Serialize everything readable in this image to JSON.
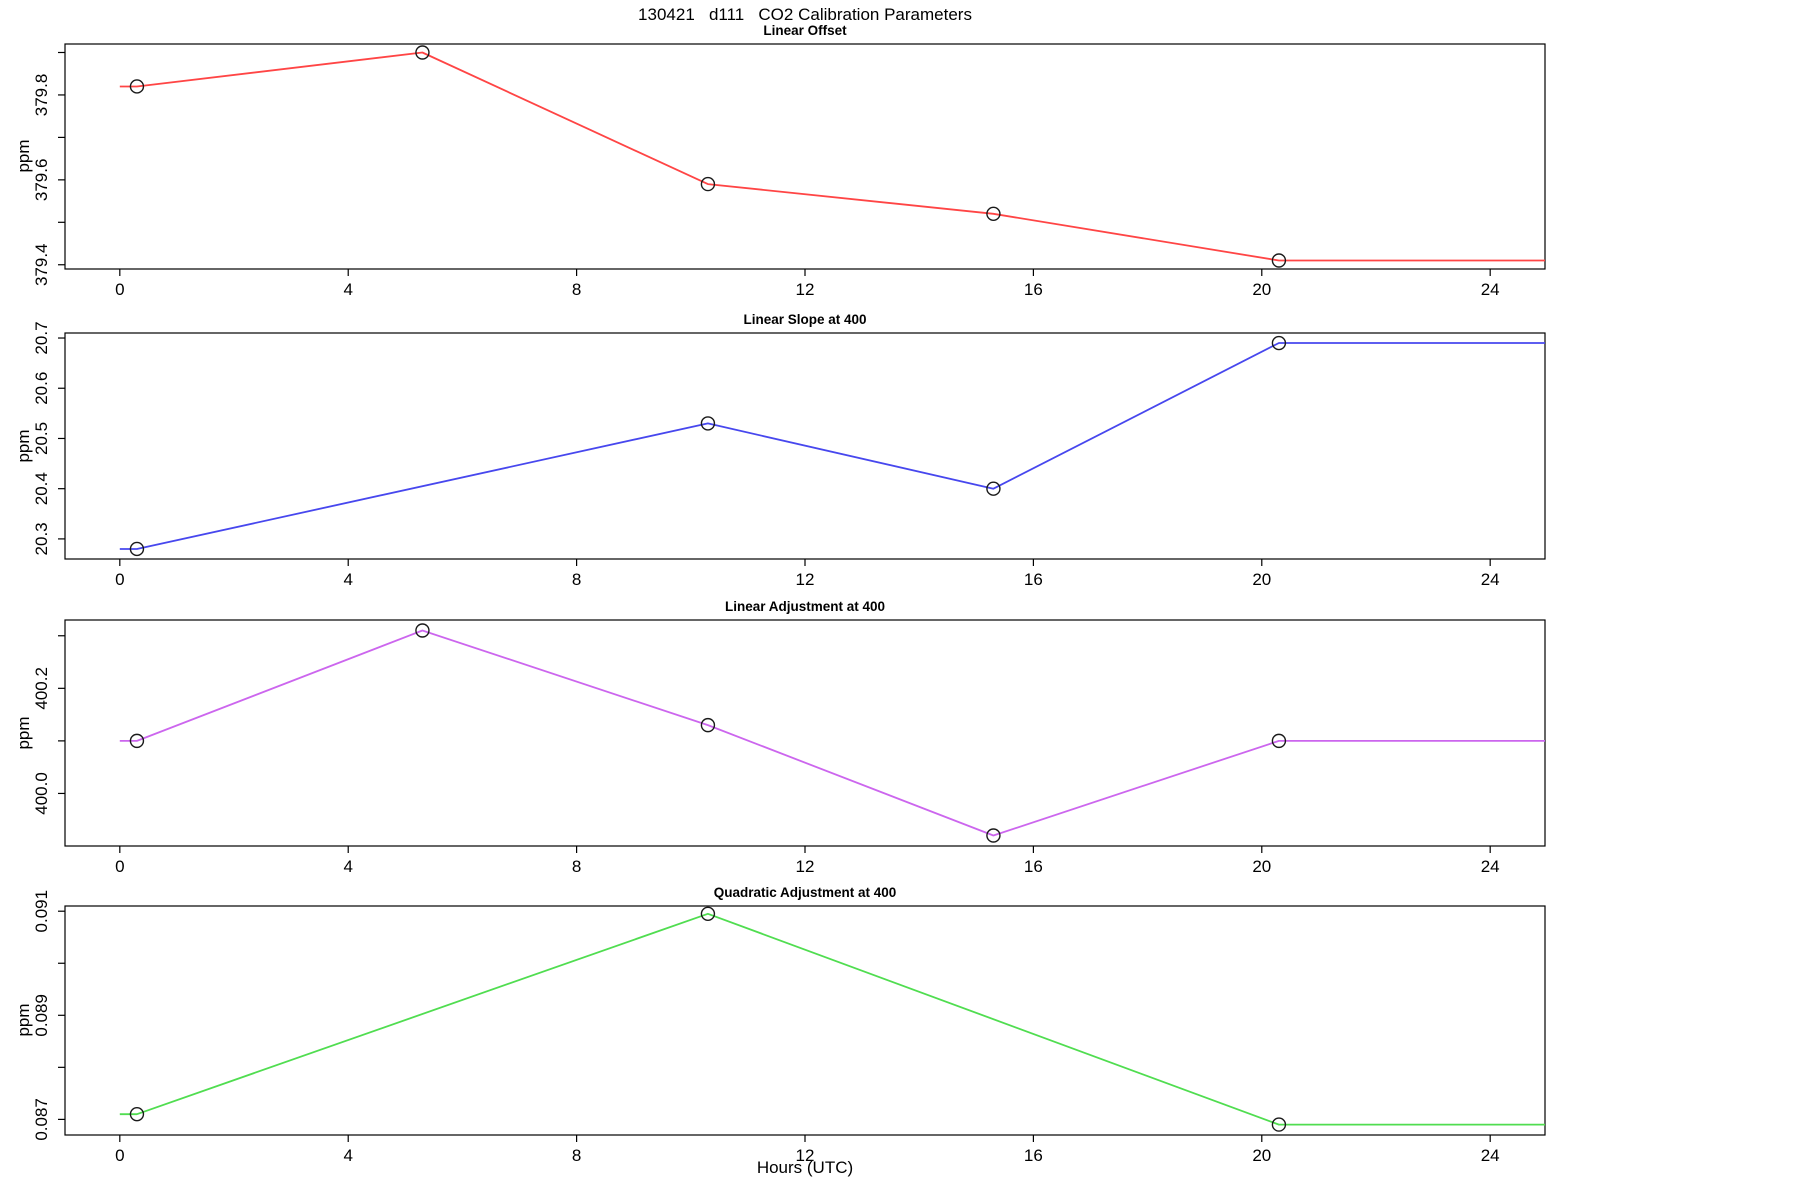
{
  "figure": {
    "title": "130421   d111   CO2 Calibration Parameters",
    "xlabel": "Hours (UTC)",
    "background": "#ffffff",
    "axis_color": "#000000"
  },
  "chart_data": [
    {
      "type": "line",
      "title": "Linear Offset",
      "ylabel": "ppm",
      "color": "#ff4545",
      "marker": "open-circle",
      "x": [
        0.3,
        5.3,
        10.3,
        15.3,
        20.3
      ],
      "y": [
        379.82,
        379.9,
        379.59,
        379.52,
        379.41
      ],
      "xlim": [
        -0.96,
        24.96
      ],
      "ylim": [
        379.39,
        379.92
      ],
      "xticks": [
        0,
        4,
        8,
        12,
        16,
        20,
        24
      ],
      "yticks": [
        379.4,
        379.5,
        379.6,
        379.7,
        379.8,
        379.9
      ],
      "ytick_labels": [
        "379.4",
        "",
        "379.6",
        "",
        "379.8",
        ""
      ],
      "extend_left_to": 0,
      "extend_right_to": 24.96,
      "grid": false,
      "legend": "none"
    },
    {
      "type": "line",
      "title": "Linear Slope at 400",
      "ylabel": "ppm",
      "color": "#4747ee",
      "marker": "open-circle",
      "x": [
        0.3,
        10.3,
        15.3,
        20.3
      ],
      "y": [
        20.28,
        20.53,
        20.4,
        20.69
      ],
      "xlim": [
        -0.96,
        24.96
      ],
      "ylim": [
        20.26,
        20.71
      ],
      "xticks": [
        0,
        4,
        8,
        12,
        16,
        20,
        24
      ],
      "yticks": [
        20.3,
        20.4,
        20.5,
        20.6,
        20.7
      ],
      "ytick_labels": [
        "20.3",
        "20.4",
        "20.5",
        "20.6",
        "20.7"
      ],
      "extend_left_to": 0,
      "extend_right_to": 24.96,
      "grid": false,
      "legend": "none"
    },
    {
      "type": "line",
      "title": "Linear Adjustment at 400",
      "ylabel": "ppm",
      "color": "#cc66ee",
      "marker": "open-circle",
      "x": [
        0.3,
        5.3,
        10.3,
        15.3,
        20.3
      ],
      "y": [
        400.1,
        400.31,
        400.13,
        399.92,
        400.1
      ],
      "xlim": [
        -0.96,
        24.96
      ],
      "ylim": [
        399.9,
        400.33
      ],
      "xticks": [
        0,
        4,
        8,
        12,
        16,
        20,
        24
      ],
      "yticks": [
        400.0,
        400.1,
        400.2,
        400.3
      ],
      "ytick_labels": [
        "400.0",
        "",
        "400.2",
        ""
      ],
      "extend_left_to": 0,
      "extend_right_to": 24.96,
      "grid": false,
      "legend": "none"
    },
    {
      "type": "line",
      "title": "Quadratic Adjustment at 400",
      "ylabel": "ppm",
      "color": "#50dd50",
      "marker": "open-circle",
      "x": [
        0.3,
        10.3,
        20.3
      ],
      "y": [
        0.0871,
        0.09095,
        0.0869
      ],
      "xlim": [
        -0.96,
        24.96
      ],
      "ylim": [
        0.0867,
        0.0911
      ],
      "xticks": [
        0,
        4,
        8,
        12,
        16,
        20,
        24
      ],
      "yticks": [
        0.087,
        0.088,
        0.089,
        0.09,
        0.091
      ],
      "ytick_labels": [
        "0.087",
        "",
        "0.089",
        "",
        "0.091"
      ],
      "extend_left_to": 0,
      "extend_right_to": 24.96,
      "grid": false,
      "legend": "none"
    }
  ]
}
